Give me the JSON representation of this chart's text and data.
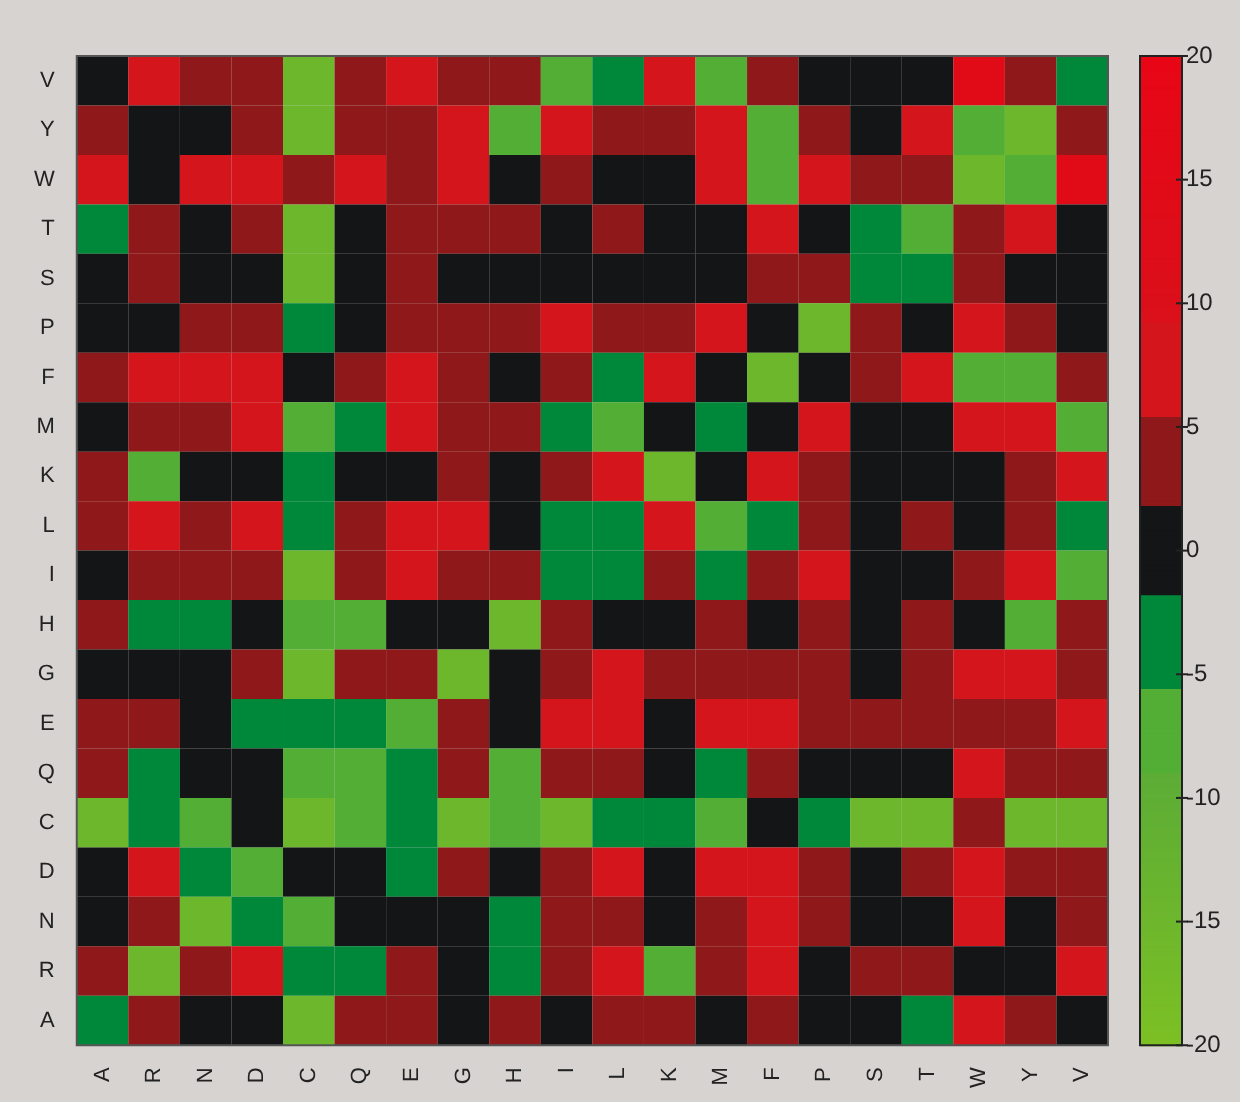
{
  "chart_data": {
    "type": "heatmap",
    "categories": [
      "A",
      "R",
      "N",
      "D",
      "C",
      "Q",
      "E",
      "G",
      "H",
      "I",
      "L",
      "K",
      "M",
      "F",
      "P",
      "S",
      "T",
      "W",
      "Y",
      "V"
    ],
    "y_categories": [
      "V",
      "Y",
      "W",
      "T",
      "S",
      "P",
      "F",
      "M",
      "K",
      "L",
      "I",
      "H",
      "G",
      "E",
      "Q",
      "C",
      "D",
      "N",
      "R",
      "A"
    ],
    "cells": [
      [
        0,
        7,
        4,
        4,
        -15,
        4,
        7,
        4,
        4,
        -7,
        -4,
        7,
        -7,
        4,
        0,
        0,
        0,
        15,
        4,
        -4
      ],
      [
        4,
        0,
        0,
        4,
        -15,
        4,
        4,
        7,
        -7,
        7,
        4,
        4,
        7,
        -7,
        4,
        0,
        7,
        -7,
        -15,
        4
      ],
      [
        7,
        0,
        7,
        7,
        4,
        7,
        4,
        7,
        0,
        4,
        0,
        0,
        7,
        -7,
        7,
        4,
        4,
        -15,
        -7,
        15
      ],
      [
        -4,
        4,
        0,
        4,
        -15,
        0,
        4,
        4,
        4,
        0,
        4,
        0,
        0,
        7,
        0,
        -4,
        -7,
        4,
        7,
        0
      ],
      [
        0,
        4,
        0,
        0,
        -15,
        0,
        4,
        0,
        0,
        0,
        0,
        0,
        0,
        4,
        4,
        -4,
        -4,
        4,
        0,
        0
      ],
      [
        0,
        0,
        4,
        4,
        -4,
        0,
        4,
        4,
        4,
        7,
        4,
        4,
        7,
        0,
        -15,
        4,
        0,
        7,
        4,
        0
      ],
      [
        4,
        7,
        7,
        7,
        0,
        4,
        7,
        4,
        0,
        4,
        -4,
        7,
        0,
        -15,
        0,
        4,
        7,
        -7,
        -7,
        4
      ],
      [
        0,
        4,
        4,
        7,
        -7,
        -4,
        7,
        4,
        4,
        -4,
        -7,
        0,
        -4,
        0,
        7,
        0,
        0,
        7,
        7,
        -7
      ],
      [
        4,
        -7,
        0,
        0,
        -4,
        0,
        0,
        4,
        0,
        4,
        7,
        -15,
        0,
        7,
        4,
        0,
        0,
        0,
        4,
        7
      ],
      [
        4,
        7,
        4,
        7,
        -4,
        4,
        7,
        7,
        0,
        -4,
        -4,
        7,
        -7,
        -4,
        4,
        0,
        4,
        0,
        4,
        -4
      ],
      [
        0,
        4,
        4,
        4,
        -15,
        4,
        7,
        4,
        4,
        -4,
        -4,
        4,
        -4,
        4,
        7,
        0,
        0,
        4,
        7,
        -7
      ],
      [
        4,
        -4,
        -4,
        0,
        -7,
        -7,
        0,
        0,
        -15,
        4,
        0,
        0,
        4,
        0,
        4,
        0,
        4,
        0,
        -7,
        4
      ],
      [
        0,
        0,
        0,
        4,
        -15,
        4,
        4,
        -15,
        0,
        4,
        7,
        4,
        4,
        4,
        4,
        0,
        4,
        7,
        7,
        4
      ],
      [
        4,
        4,
        0,
        -4,
        -4,
        -4,
        -7,
        4,
        0,
        7,
        7,
        0,
        7,
        7,
        4,
        4,
        4,
        4,
        4,
        7
      ],
      [
        4,
        -4,
        0,
        0,
        -7,
        -7,
        -4,
        4,
        -7,
        4,
        4,
        0,
        -4,
        4,
        0,
        0,
        0,
        7,
        4,
        4
      ],
      [
        -15,
        -4,
        -7,
        0,
        -15,
        -7,
        -4,
        -15,
        -7,
        -15,
        -4,
        -4,
        -7,
        0,
        -4,
        -15,
        -15,
        4,
        -15,
        -15
      ],
      [
        0,
        7,
        -4,
        -7,
        0,
        0,
        -4,
        4,
        0,
        4,
        7,
        0,
        7,
        7,
        4,
        0,
        4,
        7,
        4,
        4
      ],
      [
        0,
        4,
        -15,
        -4,
        -7,
        0,
        0,
        0,
        -4,
        4,
        4,
        0,
        4,
        7,
        4,
        0,
        0,
        7,
        0,
        4
      ],
      [
        4,
        -15,
        4,
        7,
        -4,
        -4,
        4,
        0,
        -4,
        4,
        7,
        -7,
        4,
        7,
        0,
        4,
        4,
        0,
        0,
        7
      ],
      [
        -4,
        4,
        0,
        0,
        -15,
        4,
        4,
        0,
        4,
        0,
        4,
        4,
        0,
        4,
        0,
        0,
        -4,
        7,
        4,
        0
      ]
    ],
    "clim": [
      -20,
      20
    ],
    "cticks": [
      20,
      15,
      10,
      5,
      0,
      -5,
      -10,
      -15,
      -20
    ]
  }
}
